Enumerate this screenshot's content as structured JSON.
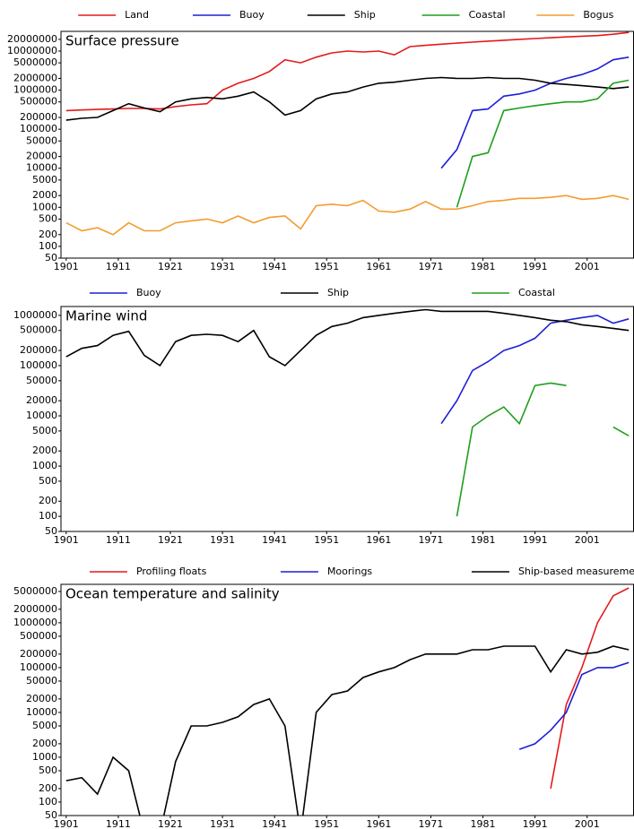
{
  "chart_data": [
    {
      "type": "line",
      "title": "Surface pressure",
      "log_scale": true,
      "legend": "top",
      "x": [
        1901,
        1904,
        1907,
        1910,
        1913,
        1916,
        1919,
        1922,
        1925,
        1928,
        1931,
        1934,
        1937,
        1940,
        1943,
        1946,
        1949,
        1952,
        1955,
        1958,
        1961,
        1964,
        1967,
        1970,
        1973,
        1976,
        1979,
        1982,
        1985,
        1988,
        1991,
        1994,
        1997,
        2000,
        2003,
        2006,
        2009
      ],
      "series": [
        {
          "name": "Land",
          "color": "#e41a1c",
          "values": [
            300000,
            310000,
            320000,
            330000,
            340000,
            340000,
            330000,
            380000,
            420000,
            450000,
            1000000,
            1500000,
            2000000,
            3000000,
            6000000,
            5000000,
            7000000,
            9000000,
            10000000,
            9500000,
            10000000,
            8000000,
            13000000,
            14000000,
            15000000,
            16000000,
            17000000,
            18000000,
            19000000,
            20000000,
            21000000,
            22000000,
            23000000,
            24000000,
            25000000,
            27000000,
            30000000
          ]
        },
        {
          "name": "Buoy",
          "color": "#1f1fd6",
          "values": [
            null,
            null,
            null,
            null,
            null,
            null,
            null,
            null,
            null,
            null,
            null,
            null,
            null,
            null,
            null,
            null,
            null,
            null,
            null,
            null,
            null,
            null,
            null,
            null,
            10000,
            30000,
            300000,
            330000,
            700000,
            800000,
            1000000,
            1500000,
            2000000,
            2500000,
            3500000,
            6000000,
            7000000
          ]
        },
        {
          "name": "Ship",
          "color": "#000000",
          "values": [
            170000,
            190000,
            200000,
            300000,
            450000,
            350000,
            280000,
            500000,
            600000,
            650000,
            600000,
            700000,
            900000,
            500000,
            230000,
            300000,
            600000,
            800000,
            900000,
            1200000,
            1500000,
            1600000,
            1800000,
            2000000,
            2100000,
            2000000,
            2000000,
            2100000,
            2000000,
            2000000,
            1800000,
            1500000,
            1400000,
            1300000,
            1200000,
            1100000,
            1200000
          ]
        },
        {
          "name": "Coastal",
          "color": "#1e9e1e",
          "values": [
            null,
            null,
            null,
            null,
            null,
            null,
            null,
            null,
            null,
            null,
            null,
            null,
            null,
            null,
            null,
            null,
            null,
            null,
            null,
            null,
            null,
            null,
            null,
            null,
            null,
            1000,
            20000,
            25000,
            300000,
            350000,
            400000,
            450000,
            500000,
            500000,
            600000,
            1500000,
            1800000
          ]
        },
        {
          "name": "Bogus",
          "color": "#f39c2e",
          "values": [
            400,
            250,
            300,
            200,
            400,
            250,
            250,
            400,
            450,
            500,
            400,
            600,
            400,
            550,
            600,
            280,
            1100,
            1200,
            1100,
            1500,
            800,
            750,
            900,
            1400,
            900,
            900,
            1100,
            1400,
            1500,
            1700,
            1700,
            1800,
            2000,
            1600,
            1700,
            2000,
            1600
          ]
        }
      ],
      "xlim": [
        1900,
        2010
      ],
      "ylim": [
        50,
        32000000
      ],
      "xticks": [
        1901,
        1911,
        1921,
        1931,
        1941,
        1951,
        1961,
        1971,
        1981,
        1991,
        2001
      ],
      "yticks": [
        50,
        100,
        200,
        500,
        1000,
        2000,
        5000,
        10000,
        20000,
        50000,
        100000,
        200000,
        500000,
        1000000,
        2000000,
        5000000,
        10000000,
        20000000
      ]
    },
    {
      "type": "line",
      "title": "Marine wind",
      "log_scale": true,
      "legend": "top",
      "x": [
        1901,
        1904,
        1907,
        1910,
        1913,
        1916,
        1919,
        1922,
        1925,
        1928,
        1931,
        1934,
        1937,
        1940,
        1943,
        1946,
        1949,
        1952,
        1955,
        1958,
        1961,
        1964,
        1967,
        1970,
        1973,
        1976,
        1979,
        1982,
        1985,
        1988,
        1991,
        1994,
        1997,
        2000,
        2003,
        2006,
        2009
      ],
      "series": [
        {
          "name": "Buoy",
          "color": "#1f1fd6",
          "values": [
            null,
            null,
            null,
            null,
            null,
            null,
            null,
            null,
            null,
            null,
            null,
            null,
            null,
            null,
            null,
            null,
            null,
            null,
            null,
            null,
            null,
            null,
            null,
            null,
            7000,
            20000,
            80000,
            120000,
            200000,
            250000,
            350000,
            700000,
            800000,
            900000,
            1000000,
            700000,
            850000
          ]
        },
        {
          "name": "Ship",
          "color": "#000000",
          "values": [
            150000,
            220000,
            250000,
            400000,
            480000,
            160000,
            100000,
            300000,
            400000,
            420000,
            400000,
            300000,
            500000,
            150000,
            100000,
            200000,
            400000,
            600000,
            700000,
            900000,
            1000000,
            1100000,
            1200000,
            1300000,
            1200000,
            1200000,
            1200000,
            1200000,
            1100000,
            1000000,
            900000,
            800000,
            750000,
            650000,
            600000,
            550000,
            500000
          ]
        },
        {
          "name": "Coastal",
          "color": "#1e9e1e",
          "values": [
            null,
            null,
            null,
            null,
            null,
            null,
            null,
            null,
            null,
            null,
            null,
            null,
            null,
            null,
            null,
            null,
            null,
            null,
            null,
            null,
            null,
            null,
            null,
            null,
            null,
            100,
            6000,
            10000,
            15000,
            7000,
            40000,
            45000,
            40000,
            null,
            null,
            6000,
            4000
          ]
        }
      ],
      "xlim": [
        1900,
        2010
      ],
      "ylim": [
        50,
        1500000
      ],
      "xticks": [
        1901,
        1911,
        1921,
        1931,
        1941,
        1951,
        1961,
        1971,
        1981,
        1991,
        2001
      ],
      "yticks": [
        50,
        100,
        200,
        500,
        1000,
        2000,
        5000,
        10000,
        20000,
        50000,
        100000,
        200000,
        500000,
        1000000
      ]
    },
    {
      "type": "line",
      "title": "Ocean temperature and salinity",
      "log_scale": true,
      "legend": "top",
      "x": [
        1901,
        1904,
        1907,
        1910,
        1913,
        1916,
        1919,
        1922,
        1925,
        1928,
        1931,
        1934,
        1937,
        1940,
        1943,
        1946,
        1949,
        1952,
        1955,
        1958,
        1961,
        1964,
        1967,
        1970,
        1973,
        1976,
        1979,
        1982,
        1985,
        1988,
        1991,
        1994,
        1997,
        2000,
        2003,
        2006,
        2009
      ],
      "series": [
        {
          "name": "Profiling floats",
          "color": "#e41a1c",
          "values": [
            null,
            null,
            null,
            null,
            null,
            null,
            null,
            null,
            null,
            null,
            null,
            null,
            null,
            null,
            null,
            null,
            null,
            null,
            null,
            null,
            null,
            null,
            null,
            null,
            null,
            null,
            null,
            null,
            null,
            null,
            null,
            200,
            15000,
            100000,
            1000000,
            4000000,
            6000000
          ]
        },
        {
          "name": "Moorings",
          "color": "#1f1fd6",
          "values": [
            null,
            null,
            null,
            null,
            null,
            null,
            null,
            null,
            null,
            null,
            null,
            null,
            null,
            null,
            null,
            null,
            null,
            null,
            null,
            null,
            null,
            null,
            null,
            null,
            null,
            null,
            null,
            null,
            null,
            1500,
            2000,
            4000,
            10000,
            70000,
            100000,
            100000,
            130000
          ]
        },
        {
          "name": "Ship-based measurements",
          "color": "#000000",
          "values": [
            300,
            350,
            150,
            1000,
            500,
            20,
            20,
            800,
            5000,
            5000,
            6000,
            8000,
            15000,
            20000,
            5000,
            20,
            10000,
            25000,
            30000,
            60000,
            80000,
            100000,
            150000,
            200000,
            200000,
            200000,
            250000,
            250000,
            300000,
            300000,
            300000,
            80000,
            250000,
            200000,
            220000,
            300000,
            250000
          ]
        }
      ],
      "xlim": [
        1900,
        2010
      ],
      "ylim": [
        50,
        7200000
      ],
      "xticks": [
        1901,
        1911,
        1921,
        1931,
        1941,
        1951,
        1961,
        1971,
        1981,
        1991,
        2001
      ],
      "yticks": [
        50,
        100,
        200,
        500,
        1000,
        2000,
        5000,
        10000,
        20000,
        50000,
        100000,
        200000,
        500000,
        1000000,
        2000000,
        5000000
      ]
    }
  ]
}
